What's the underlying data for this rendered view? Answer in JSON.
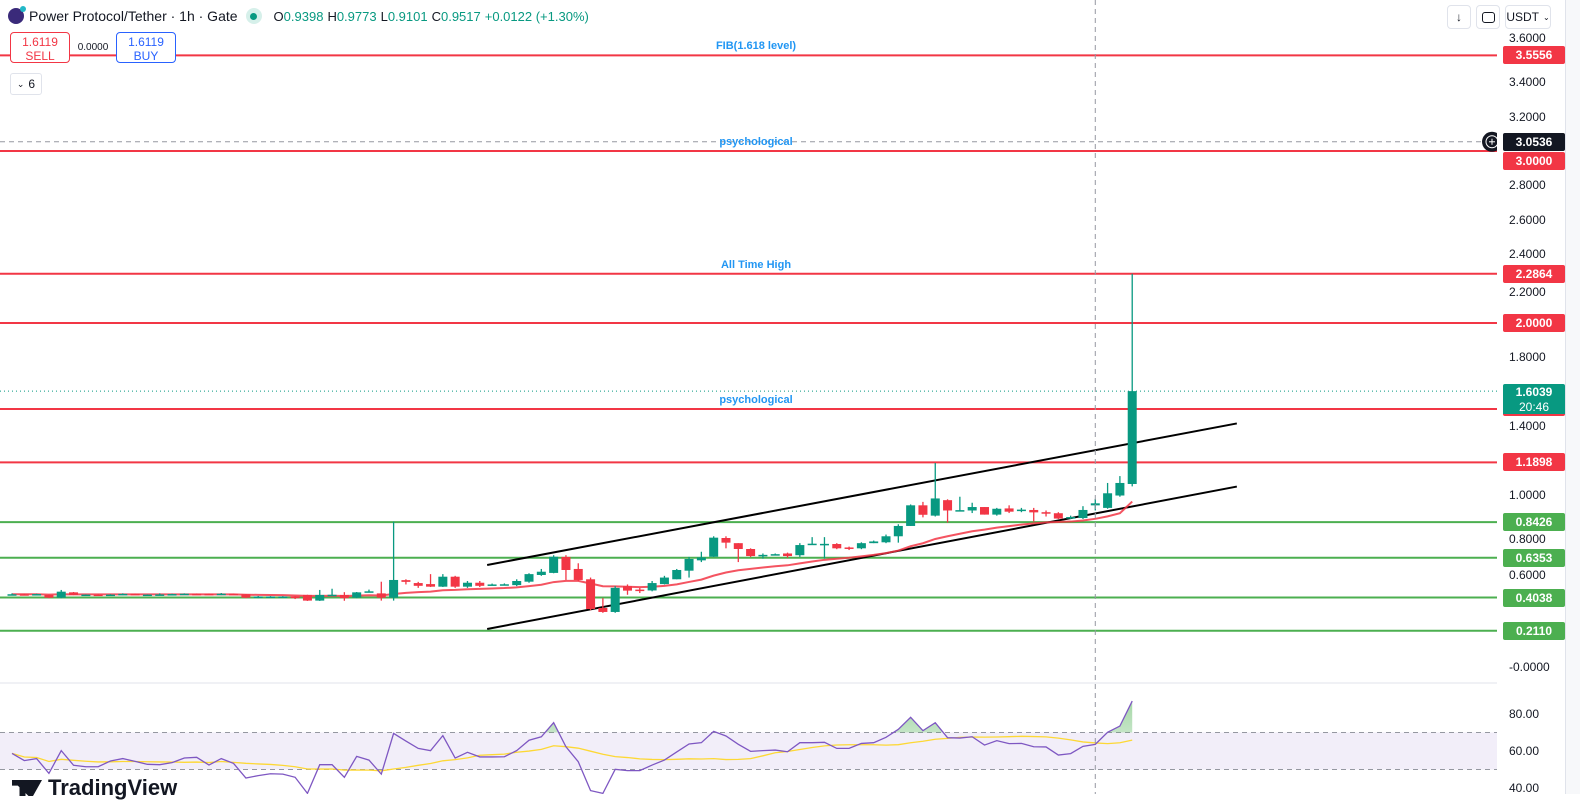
{
  "header": {
    "title": "Power Protocol/Tether · 1h · Gate",
    "ohlc": {
      "o_label": "O",
      "o": "0.9398",
      "h_label": "H",
      "h": "0.9773",
      "l_label": "L",
      "l": "0.9101",
      "c_label": "C",
      "c": "0.9517",
      "change": "+0.0122 (+1.30%)"
    }
  },
  "trade": {
    "sell_price": "1.6119",
    "sell_label": "SELL",
    "spread": "0.0000",
    "buy_price": "1.6119",
    "buy_label": "BUY"
  },
  "indicators_toggle": {
    "icon": "chevron-down-icon",
    "count": "6"
  },
  "toolbar_right": {
    "arrow_icon": "arrow-down-icon",
    "fullscreen_icon": "fullscreen-icon",
    "currency": "USDT"
  },
  "branding": {
    "logo_text": "TradingView"
  },
  "colors": {
    "up": "#089981",
    "down": "#f23645",
    "resistance": "#f23645",
    "support": "#4caf50",
    "level_label": "#2196f3",
    "rsi": "#7e57c2",
    "rsi_ma": "#fdd835",
    "ma": "#f23645",
    "crosshair_tag": "#131722"
  },
  "chart_data": {
    "type": "candlestick",
    "symbol": "Power Protocol/Tether",
    "interval": "1h",
    "exchange": "Gate",
    "y_axis": {
      "ticks": [
        "3.6000",
        "3.4000",
        "3.2000",
        "2.8000",
        "2.6000",
        "2.4000",
        "2.2000",
        "1.8000",
        "1.4000",
        "1.0000",
        "0.8000",
        "0.6000",
        "-0.0000"
      ],
      "range": [
        -0.05,
        3.7
      ]
    },
    "candles_ohlc": [
      [
        0.42,
        0.428,
        0.418,
        0.423
      ],
      [
        0.423,
        0.425,
        0.42,
        0.422
      ],
      [
        0.421,
        0.426,
        0.419,
        0.424
      ],
      [
        0.419,
        0.42,
        0.4,
        0.403
      ],
      [
        0.403,
        0.448,
        0.4,
        0.438
      ],
      [
        0.434,
        0.436,
        0.418,
        0.419
      ],
      [
        0.42,
        0.422,
        0.418,
        0.421
      ],
      [
        0.421,
        0.423,
        0.419,
        0.42
      ],
      [
        0.418,
        0.423,
        0.417,
        0.421
      ],
      [
        0.42,
        0.428,
        0.418,
        0.425
      ],
      [
        0.425,
        0.426,
        0.419,
        0.42
      ],
      [
        0.42,
        0.422,
        0.419,
        0.421
      ],
      [
        0.421,
        0.428,
        0.42,
        0.422
      ],
      [
        0.419,
        0.426,
        0.418,
        0.424
      ],
      [
        0.42,
        0.428,
        0.419,
        0.426
      ],
      [
        0.425,
        0.427,
        0.42,
        0.421
      ],
      [
        0.425,
        0.426,
        0.419,
        0.42
      ],
      [
        0.42,
        0.43,
        0.418,
        0.426
      ],
      [
        0.425,
        0.426,
        0.419,
        0.42
      ],
      [
        0.423,
        0.424,
        0.4,
        0.403
      ],
      [
        0.404,
        0.413,
        0.4,
        0.41
      ],
      [
        0.404,
        0.412,
        0.402,
        0.41
      ],
      [
        0.404,
        0.412,
        0.402,
        0.41
      ],
      [
        0.41,
        0.412,
        0.395,
        0.4
      ],
      [
        0.419,
        0.42,
        0.384,
        0.386
      ],
      [
        0.386,
        0.448,
        0.384,
        0.419
      ],
      [
        0.419,
        0.455,
        0.415,
        0.42
      ],
      [
        0.419,
        0.435,
        0.385,
        0.4
      ],
      [
        0.403,
        0.436,
        0.4,
        0.434
      ],
      [
        0.438,
        0.45,
        0.435,
        0.44
      ],
      [
        0.428,
        0.496,
        0.386,
        0.403
      ],
      [
        0.403,
        0.845,
        0.386,
        0.506
      ],
      [
        0.505,
        0.51,
        0.48,
        0.495
      ],
      [
        0.488,
        0.495,
        0.46,
        0.472
      ],
      [
        0.482,
        0.54,
        0.465,
        0.467
      ],
      [
        0.467,
        0.54,
        0.465,
        0.525
      ],
      [
        0.525,
        0.53,
        0.46,
        0.467
      ],
      [
        0.467,
        0.5,
        0.46,
        0.49
      ],
      [
        0.49,
        0.5,
        0.465,
        0.472
      ],
      [
        0.478,
        0.485,
        0.475,
        0.48
      ],
      [
        0.48,
        0.486,
        0.476,
        0.481
      ],
      [
        0.476,
        0.51,
        0.47,
        0.5
      ],
      [
        0.496,
        0.545,
        0.49,
        0.54
      ],
      [
        0.535,
        0.57,
        0.53,
        0.554
      ],
      [
        0.547,
        0.65,
        0.545,
        0.641
      ],
      [
        0.64,
        0.65,
        0.506,
        0.564
      ],
      [
        0.57,
        0.603,
        0.5,
        0.506
      ],
      [
        0.51,
        0.52,
        0.33,
        0.337
      ],
      [
        0.343,
        0.4,
        0.315,
        0.32
      ],
      [
        0.32,
        0.47,
        0.315,
        0.46
      ],
      [
        0.47,
        0.48,
        0.42,
        0.444
      ],
      [
        0.45,
        0.46,
        0.43,
        0.445
      ],
      [
        0.445,
        0.5,
        0.44,
        0.488
      ],
      [
        0.482,
        0.53,
        0.48,
        0.52
      ],
      [
        0.51,
        0.57,
        0.51,
        0.564
      ],
      [
        0.56,
        0.64,
        0.52,
        0.628
      ],
      [
        0.62,
        0.67,
        0.61,
        0.637
      ],
      [
        0.641,
        0.76,
        0.64,
        0.752
      ],
      [
        0.75,
        0.76,
        0.69,
        0.723
      ],
      [
        0.72,
        0.72,
        0.61,
        0.686
      ],
      [
        0.686,
        0.69,
        0.64,
        0.645
      ],
      [
        0.65,
        0.66,
        0.63,
        0.652
      ],
      [
        0.655,
        0.66,
        0.65,
        0.656
      ],
      [
        0.66,
        0.665,
        0.635,
        0.645
      ],
      [
        0.65,
        0.72,
        0.64,
        0.709
      ],
      [
        0.715,
        0.755,
        0.71,
        0.717
      ],
      [
        0.715,
        0.755,
        0.63,
        0.716
      ],
      [
        0.715,
        0.72,
        0.685,
        0.69
      ],
      [
        0.695,
        0.7,
        0.68,
        0.69
      ],
      [
        0.69,
        0.725,
        0.685,
        0.72
      ],
      [
        0.72,
        0.735,
        0.72,
        0.73
      ],
      [
        0.725,
        0.77,
        0.72,
        0.76
      ],
      [
        0.76,
        0.83,
        0.723,
        0.82
      ],
      [
        0.82,
        0.945,
        0.82,
        0.94
      ],
      [
        0.94,
        0.96,
        0.87,
        0.885
      ],
      [
        0.88,
        1.186,
        0.875,
        0.98
      ],
      [
        0.97,
        0.975,
        0.84,
        0.91
      ],
      [
        0.91,
        0.99,
        0.905,
        0.912
      ],
      [
        0.91,
        0.955,
        0.895,
        0.93
      ],
      [
        0.93,
        0.93,
        0.886,
        0.886
      ],
      [
        0.886,
        0.925,
        0.88,
        0.92
      ],
      [
        0.922,
        0.94,
        0.895,
        0.903
      ],
      [
        0.912,
        0.925,
        0.9,
        0.915
      ],
      [
        0.913,
        0.925,
        0.845,
        0.899
      ],
      [
        0.9,
        0.91,
        0.875,
        0.896
      ],
      [
        0.894,
        0.9,
        0.86,
        0.863
      ],
      [
        0.863,
        0.88,
        0.86,
        0.872
      ],
      [
        0.866,
        0.935,
        0.86,
        0.913
      ],
      [
        0.9398,
        0.9773,
        0.9101,
        0.9517
      ],
      [
        0.925,
        1.07,
        0.92,
        1.01
      ],
      [
        0.997,
        1.11,
        0.99,
        1.07
      ],
      [
        1.064,
        2.2864,
        1.05,
        1.6039
      ]
    ],
    "levels": [
      {
        "value": "3.5556",
        "kind": "resistance",
        "label": "FIB(1.618 level)",
        "tag": true
      },
      {
        "value": "3.0000",
        "kind": "resistance",
        "label": "psychological",
        "tag": true
      },
      {
        "value": "2.2864",
        "kind": "resistance",
        "label": "All Time High",
        "tag": true
      },
      {
        "value": "2.0000",
        "kind": "resistance",
        "label": "",
        "tag": true
      },
      {
        "value": "1.5000",
        "kind": "resistance",
        "label": "psychological",
        "tag": false
      },
      {
        "value": "1.1898",
        "kind": "resistance",
        "label": "",
        "tag": true
      },
      {
        "value": "0.8426",
        "kind": "support",
        "label": "",
        "tag": true
      },
      {
        "value": "0.6353",
        "kind": "support",
        "label": "",
        "tag": true
      },
      {
        "value": "0.4038",
        "kind": "support",
        "label": "",
        "tag": true
      },
      {
        "value": "0.2110",
        "kind": "support",
        "label": "",
        "tag": true
      }
    ],
    "channel": {
      "upper": {
        "from_bar": 38.6,
        "from_price": 0.593,
        "to_bar": 99.5,
        "to_price": 1.416
      },
      "lower": {
        "from_bar": 38.6,
        "from_price": 0.221,
        "to_bar": 99.5,
        "to_price": 1.049
      }
    },
    "last_price": {
      "value": "1.6039",
      "countdown": "20:46"
    },
    "crosshair": {
      "bar": 88,
      "price": "3.0536"
    },
    "rsi": {
      "ticks": [
        "80.00",
        "60.00",
        "40.00"
      ],
      "bands": [
        70,
        50
      ],
      "values": [
        58.7,
        54.8,
        55.9,
        47.9,
        60.2,
        52.3,
        51.5,
        51.5,
        54.6,
        55.9,
        54.4,
        52.8,
        52.6,
        53.7,
        56.2,
        56.6,
        52.4,
        55.9,
        53.3,
        45.4,
        46.7,
        47.7,
        47.5,
        45.8,
        37.1,
        52.6,
        52.6,
        45.8,
        57.1,
        55.1,
        47.5,
        69.5,
        65.4,
        61.4,
        60.2,
        68.3,
        56.2,
        59.3,
        56.8,
        56.8,
        56.9,
        60.2,
        65.8,
        67.7,
        75.3,
        62.3,
        54.2,
        38.6,
        37.1,
        50.1,
        49.4,
        49.4,
        52.4,
        55.1,
        59.5,
        63.8,
        64.5,
        70.6,
        68.1,
        63.6,
        59.8,
        60.2,
        60.5,
        59.6,
        64.5,
        64.5,
        64.7,
        61.4,
        61.4,
        64.1,
        64.5,
        67.4,
        71.7,
        78.2,
        71.0,
        75.3,
        67.2,
        67.0,
        67.7,
        63.2,
        65.6,
        64.0,
        64.1,
        62.3,
        62.2,
        57.8,
        58.6,
        62.5,
        63.6,
        70.1,
        73.5,
        87.0
      ]
    }
  }
}
